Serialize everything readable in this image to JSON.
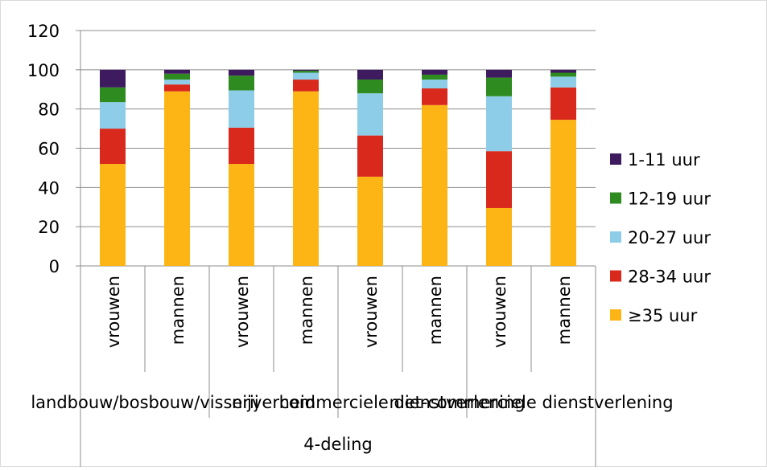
{
  "chart_data": {
    "type": "bar",
    "stacked": true,
    "grid": true,
    "legend_position": "right",
    "ylim": [
      0,
      120
    ],
    "yticks": [
      0,
      20,
      40,
      60,
      80,
      100,
      120
    ],
    "categories": [
      "vrouwen",
      "mannen",
      "vrouwen",
      "mannen",
      "vrouwen",
      "mannen",
      "vrouwen",
      "mannen"
    ],
    "groups": [
      {
        "label": "landbouw/bosbouw/visserij",
        "categories": [
          0,
          1
        ]
      },
      {
        "label": "nijverheid",
        "categories": [
          2,
          3
        ]
      },
      {
        "label": "commerciele dienstverlening",
        "categories": [
          4,
          5
        ]
      },
      {
        "label": "niet-commerciele dienstverlening",
        "categories": [
          6,
          7
        ]
      }
    ],
    "super_group_label": "4-deling",
    "series": [
      {
        "name": "≥35 uur",
        "color": "#FDB515",
        "values": [
          52,
          89,
          52,
          89,
          45.5,
          82,
          29.5,
          74.5
        ]
      },
      {
        "name": "28-34 uur",
        "color": "#D9291C",
        "values": [
          18,
          3.5,
          18.5,
          6,
          21,
          8.5,
          29,
          16.5
        ]
      },
      {
        "name": "20-27 uur",
        "color": "#8DCDE8",
        "values": [
          13.5,
          2.5,
          19,
          3.5,
          21.5,
          4.5,
          28,
          5.5
        ]
      },
      {
        "name": "12-19 uur",
        "color": "#2E8B1F",
        "values": [
          7.5,
          3,
          7.5,
          1,
          7,
          2.5,
          9.5,
          2
        ]
      },
      {
        "name": "1-11 uur",
        "color": "#3E1A5E",
        "values": [
          9,
          2,
          3,
          0.5,
          5,
          2.5,
          4,
          1.5
        ]
      }
    ]
  }
}
